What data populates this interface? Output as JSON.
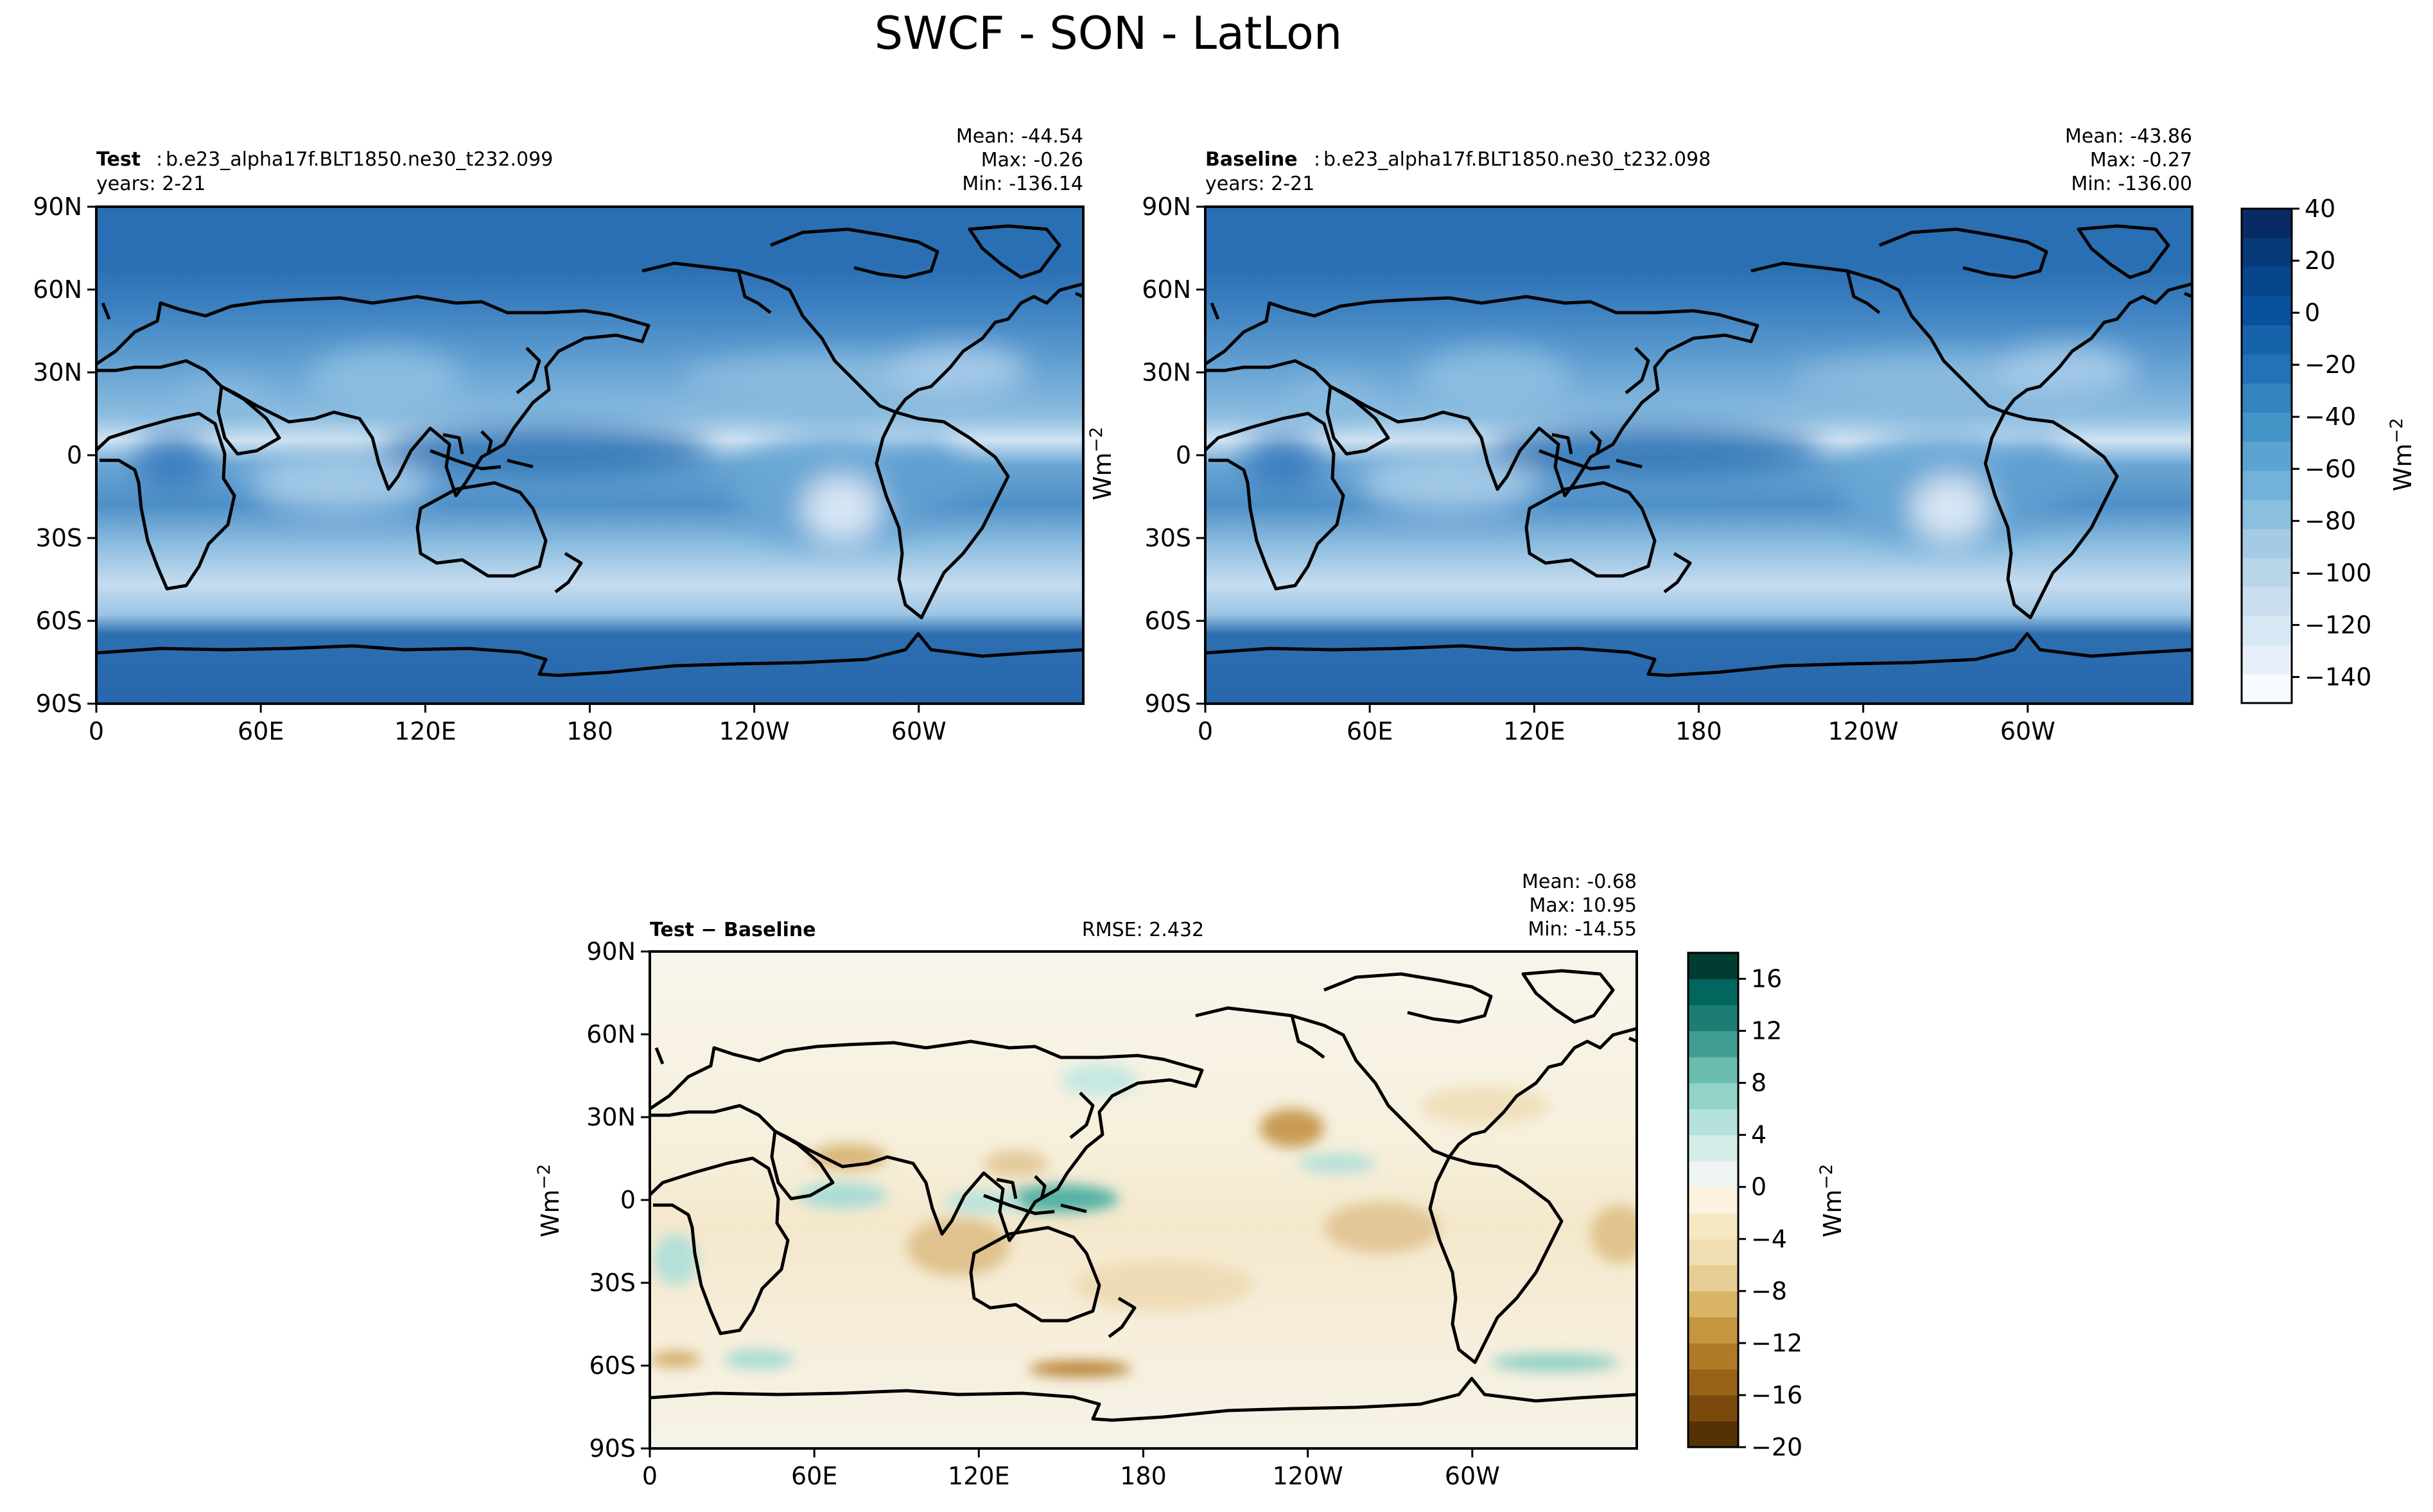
{
  "title": "SWCF - SON - LatLon",
  "units_label": "Wm",
  "units_exp": "−2",
  "chart_data": [
    {
      "type": "heatmap",
      "name": "test",
      "case_label": "Test",
      "case_name": "b.e23_alpha17f.BLT1850.ne30_t232.099",
      "years": "years: 2-21",
      "stats": {
        "mean": "Mean: -44.54",
        "max": "Max: -0.26",
        "min": "Min: -136.14"
      },
      "xticks": [
        "0",
        "60E",
        "120E",
        "180",
        "120W",
        "60W"
      ],
      "yticks": [
        "90N",
        "60N",
        "30N",
        "0",
        "30S",
        "60S",
        "90S"
      ],
      "xlim": [
        0,
        360
      ],
      "ylim": [
        -90,
        90
      ]
    },
    {
      "type": "heatmap",
      "name": "baseline",
      "case_label": "Baseline",
      "case_name": "b.e23_alpha17f.BLT1850.ne30_t232.098",
      "years": "years: 2-21",
      "stats": {
        "mean": "Mean: -43.86",
        "max": "Max: -0.27",
        "min": "Min: -136.00"
      },
      "xticks": [
        "0",
        "60E",
        "120E",
        "180",
        "120W",
        "60W"
      ],
      "yticks": [
        "90N",
        "60N",
        "30N",
        "0",
        "30S",
        "60S",
        "90S"
      ],
      "xlim": [
        0,
        360
      ],
      "ylim": [
        -90,
        90
      ]
    },
    {
      "type": "heatmap",
      "name": "difference",
      "case_label": "Test − Baseline",
      "rmse": "RMSE: 2.432",
      "stats": {
        "mean": "Mean: -0.68",
        "max": "Max: 10.95",
        "min": "Min: -14.55"
      },
      "xticks": [
        "0",
        "60E",
        "120E",
        "180",
        "120W",
        "60W"
      ],
      "yticks": [
        "90N",
        "60N",
        "30N",
        "0",
        "30S",
        "60S",
        "90S"
      ],
      "xlim": [
        0,
        360
      ],
      "ylim": [
        -90,
        90
      ]
    }
  ],
  "colorbars": {
    "main": {
      "range": [
        -150,
        40
      ],
      "ticks": [
        "40",
        "20",
        "0",
        "−20",
        "−40",
        "−60",
        "−80",
        "−100",
        "−120",
        "−140"
      ],
      "tick_values": [
        40,
        20,
        0,
        -20,
        -40,
        -60,
        -80,
        -100,
        -120,
        -140
      ],
      "colors": [
        "#f7fbff",
        "#e7f0fa",
        "#d9e8f5",
        "#cadef0",
        "#b8d5ea",
        "#a4cbe3",
        "#8bbfde",
        "#72b2d8",
        "#5ba3d0",
        "#4594c7",
        "#3383be",
        "#2272b5",
        "#1663aa",
        "#08519c",
        "#08468b",
        "#083a7a",
        "#082b63"
      ]
    },
    "diff": {
      "range": [
        -20,
        18
      ],
      "ticks": [
        "16",
        "12",
        "8",
        "4",
        "0",
        "−4",
        "−8",
        "−12",
        "−16",
        "−20"
      ],
      "tick_values": [
        16,
        12,
        8,
        4,
        0,
        -4,
        -8,
        -12,
        -16,
        -20
      ],
      "colors": [
        "#543005",
        "#7a4a0c",
        "#966216",
        "#b07a28",
        "#c5963f",
        "#d8b368",
        "#e7cd94",
        "#f0ddb3",
        "#f6e8c3",
        "#fbf2e0",
        "#edf4f1",
        "#d4ede8",
        "#b5e2da",
        "#93d2c6",
        "#6abcaf",
        "#3f9d91",
        "#1c7e72",
        "#01665e",
        "#003c30"
      ]
    }
  }
}
